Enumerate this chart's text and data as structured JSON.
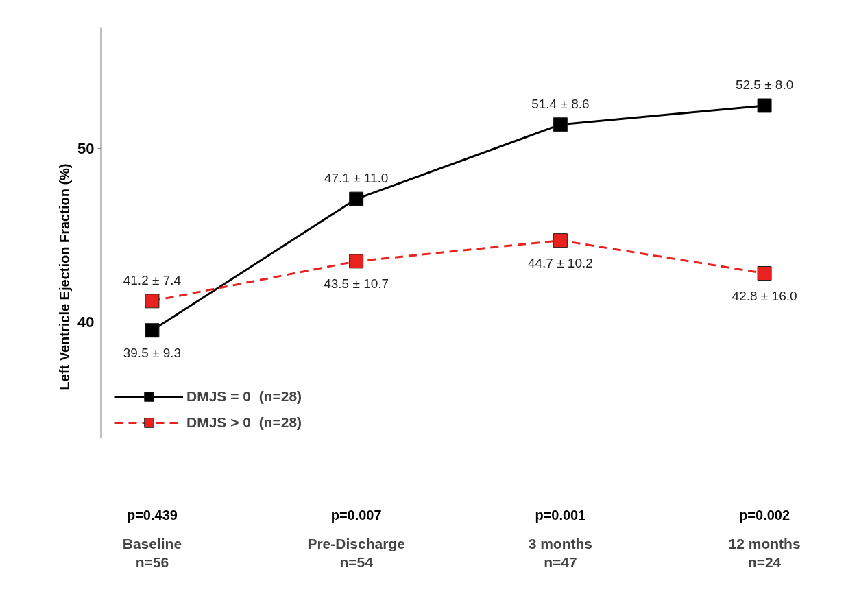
{
  "chart_data": {
    "type": "line",
    "ylabel": "Left Ventricle Ejection Fraction (%)",
    "categories": [
      "Baseline\nn=56",
      "Pre-Discharge\nn=54",
      "3 months\nn=47",
      "12 months\nn=24"
    ],
    "series": [
      {
        "name": "DMJS = 0  (n=28)",
        "color": "#000000",
        "line_style": "solid",
        "values": [
          39.5,
          47.1,
          51.4,
          52.5
        ],
        "value_labels": [
          "39.5 ± 9.3",
          "47.1 ± 11.0",
          "51.4 ± 8.6",
          "52.5 ± 8.0"
        ]
      },
      {
        "name": "DMJS > 0  (n=28)",
        "color": "#e8231f",
        "line_style": "dashed",
        "values": [
          41.2,
          43.5,
          44.7,
          42.8
        ],
        "value_labels": [
          "41.2 ± 7.4",
          "43.5 ± 10.7",
          "44.7 ± 10.2",
          "42.8 ± 16.0"
        ]
      }
    ],
    "ylim": [
      33.3,
      57
    ],
    "yticks": [
      40,
      50
    ],
    "marker": "square",
    "grid": false,
    "legend": "bottom left",
    "annotations": [
      "p=0.439",
      "p=0.007",
      "p=0.001",
      "p=0.002"
    ]
  }
}
